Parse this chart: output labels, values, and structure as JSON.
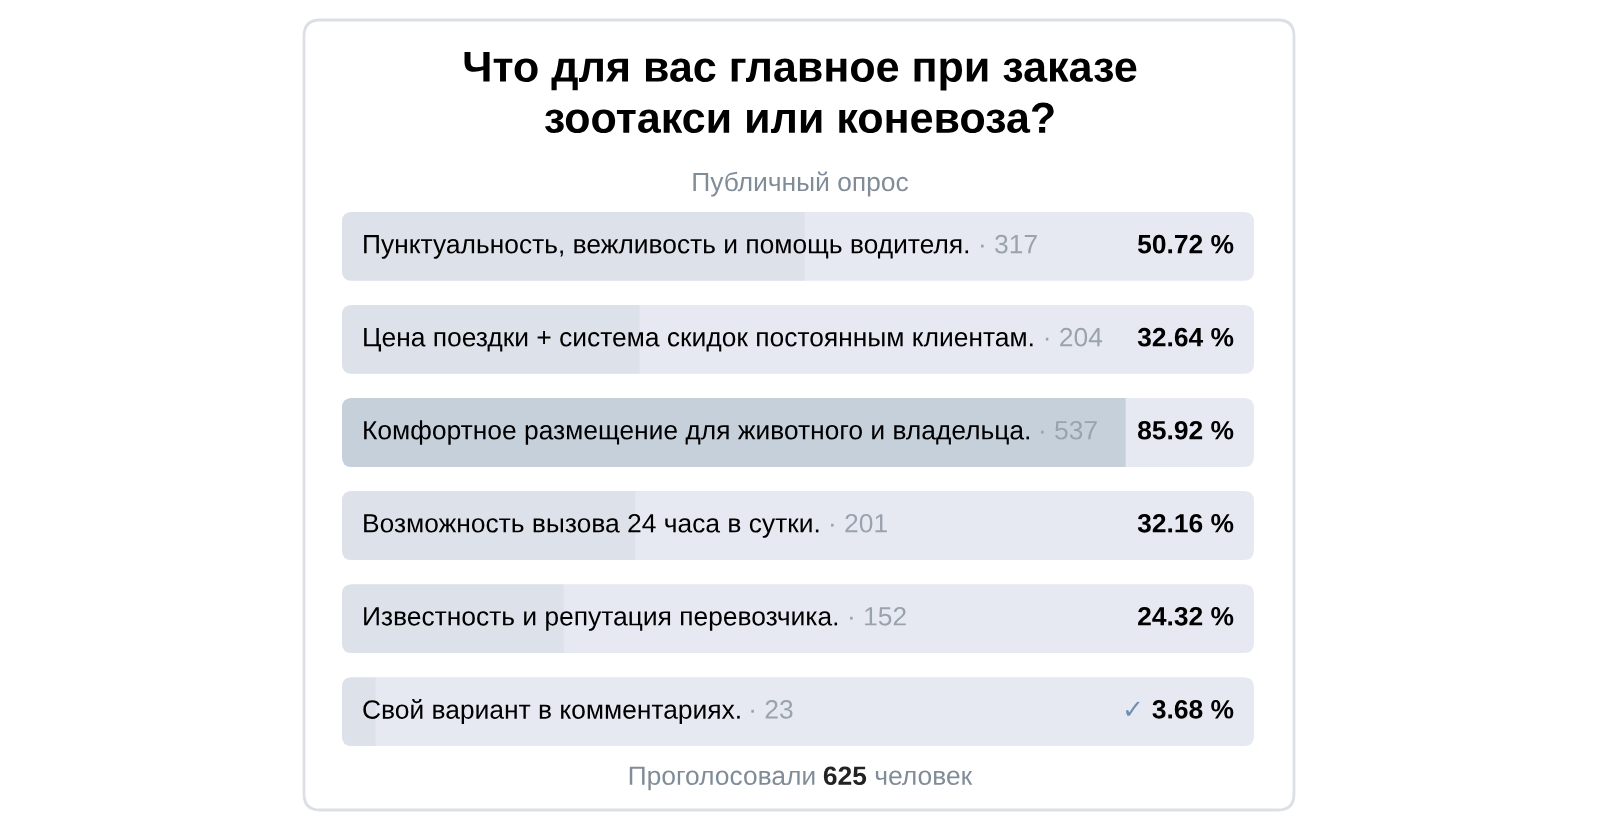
{
  "chart_data": {
    "type": "bar",
    "orientation": "horizontal",
    "title": "Что для вас главное при заказе зоотакси или коневоза?",
    "subtitle": "Публичный опрос",
    "categories": [
      "Пунктуальность, вежливость и помощь водителя. · 317",
      "Цена поездки + система скидок постоянным клиентам. · 204",
      "Комфортное размещение для животного и владельца. · 537",
      "Возможность вызова 24 часа в сутки. · 201",
      "Известность и репутация перевозчика. · 152",
      "Свой вариант в комментариях. · 23"
    ],
    "values": [
      50.72,
      32.64,
      85.92,
      32.16,
      24.32,
      3.68
    ],
    "value_labels": [
      "50.72 %",
      "32.64 %",
      "85.92 %",
      "32.16 %",
      "24.32 %",
      "✓ 3.68 %"
    ],
    "colors": [
      "#dde1ea",
      "#dde1ea",
      "#c6d0db",
      "#dde1ea",
      "#dde1ea",
      "#dde1ea"
    ],
    "xlim": [
      0,
      100
    ],
    "tick_labels": "y",
    "annotations": [
      "Проголосовали 625 человек"
    ]
  }
}
